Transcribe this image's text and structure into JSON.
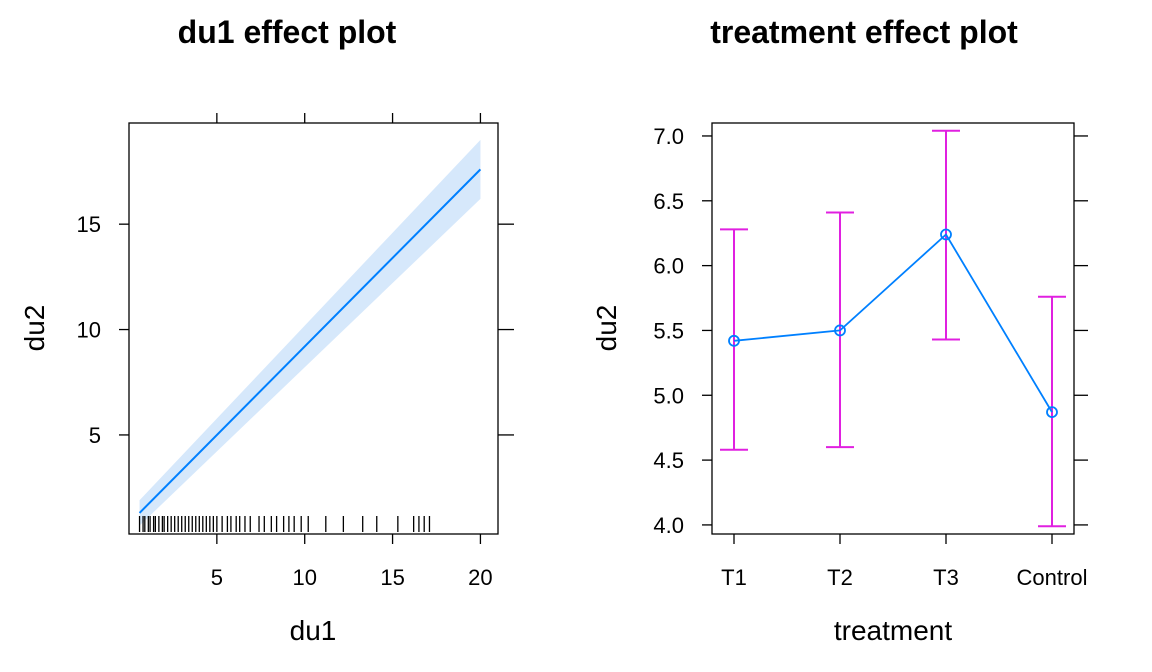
{
  "chart_data": [
    {
      "type": "line",
      "title": "du1 effect plot",
      "xlabel": "du1",
      "ylabel": "du2",
      "xlim": [
        0.0,
        21.0
      ],
      "ylim": [
        0.3,
        19.8
      ],
      "x_ticks": [
        5,
        10,
        15,
        20
      ],
      "y_ticks": [
        5,
        10,
        15
      ],
      "grid": false,
      "series": [
        {
          "x": [
            0.6,
            20.0
          ],
          "y": [
            1.3,
            17.6
          ],
          "lower": [
            0.7,
            16.2
          ],
          "upper": [
            1.9,
            19.0
          ]
        }
      ],
      "rug": [
        0.6,
        0.8,
        0.9,
        1.1,
        1.2,
        1.4,
        1.5,
        1.7,
        1.9,
        2.0,
        2.2,
        2.4,
        2.6,
        2.8,
        3.0,
        3.2,
        3.4,
        3.6,
        3.8,
        4.0,
        4.2,
        4.4,
        4.6,
        4.8,
        5.0,
        5.3,
        5.6,
        5.8,
        6.1,
        6.3,
        6.6,
        6.9,
        7.4,
        7.7,
        8.1,
        8.4,
        8.8,
        9.1,
        9.4,
        9.8,
        10.2,
        11.2,
        12.2,
        13.3,
        14.1,
        15.3,
        16.2,
        16.5,
        16.8,
        17.1
      ],
      "colors": {
        "line": "#0080ff",
        "band": "#d6e8fb",
        "rug": "#000000"
      }
    },
    {
      "type": "line",
      "title": "treatment effect plot",
      "xlabel": "treatment",
      "ylabel": "du2",
      "categories": [
        "T1",
        "T2",
        "T3",
        "Control"
      ],
      "ylim": [
        3.93,
        7.1
      ],
      "y_ticks": [
        4.0,
        4.5,
        5.0,
        5.5,
        6.0,
        6.5,
        7.0
      ],
      "grid": false,
      "series": [
        {
          "values": [
            5.42,
            5.5,
            6.24,
            4.87
          ],
          "lower": [
            4.58,
            4.6,
            5.43,
            3.99
          ],
          "upper": [
            6.28,
            6.41,
            7.04,
            5.76
          ]
        }
      ],
      "colors": {
        "line": "#0080ff",
        "errorbar": "#e020e0"
      }
    }
  ]
}
